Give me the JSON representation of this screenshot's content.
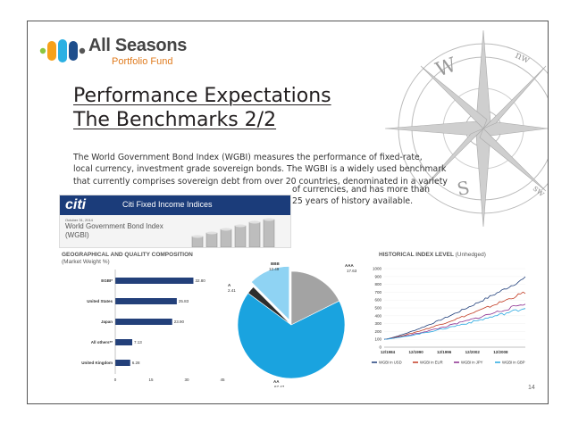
{
  "logo": {
    "name": "All Seasons",
    "subtitle": "Portfolio Fund"
  },
  "title": {
    "line1": "Performance Expectations",
    "line2": "The Benchmarks 2/2"
  },
  "body": {
    "lines": [
      "The World Government Bond Index (WGBI) measures the performance of fixed-rate,",
      "local currency, investment grade sovereign bonds. The WGBI is a widely used benchmark",
      "that currently comprises sovereign debt from over 20 countries, denominated in a variety"
    ],
    "cont_lines": [
      "of currencies, and has more than",
      "25 years of history available."
    ]
  },
  "citi_card": {
    "logo": "citi",
    "header": "Citi Fixed Income Indices",
    "date": "October 31, 2014",
    "name_line1": "World Government Bond Index",
    "name_line2": "(WGBI)"
  },
  "compass": {
    "n1": "nw",
    "n2": "W",
    "n3": "S",
    "n4": "sw"
  },
  "geo_chart": {
    "title_bold": "GEOGRAPHICAL AND QUALITY COMPOSITION",
    "title_sub": "(Market Weight %)",
    "bar_color": "#23407a",
    "bars": [
      {
        "label": "EGBI*",
        "value": 32.8,
        "text": "32.80"
      },
      {
        "label": "United States",
        "value": 25.83,
        "text": "25.83"
      },
      {
        "label": "Japan",
        "value": 23.9,
        "text": "23.90"
      },
      {
        "label": "All others**",
        "value": 7.13,
        "text": "7.13"
      },
      {
        "label": "United Kingdom",
        "value": 6.28,
        "text": "6.28"
      }
    ],
    "ticks": [
      "0",
      "15",
      "30",
      "45"
    ]
  },
  "pie_chart": {
    "slices": [
      {
        "label": "AAA",
        "value": 17.63,
        "color": "#a3a3a3"
      },
      {
        "label": "AA",
        "value": 67.47,
        "color": "#1aa3df"
      },
      {
        "label": "A",
        "value": 2.41,
        "color": "#2d2d2d"
      },
      {
        "label": "BBB",
        "value": 12.49,
        "color": "#8fd3f3"
      }
    ],
    "label_texts": {
      "aaa_name": "AAA",
      "aaa_val": "17.63",
      "aa_name": "AA",
      "aa_val": "67.47",
      "a_name": "A",
      "a_val": "2.41",
      "bbb_name": "BBB",
      "bbb_val": "12.49"
    }
  },
  "hist_chart": {
    "title_bold": "HISTORICAL INDEX LEVEL",
    "title_sub": "(Unhedged)",
    "y_ticks": [
      "1000",
      "900",
      "800",
      "700",
      "600",
      "500",
      "400",
      "300",
      "200",
      "100",
      "0"
    ],
    "x_ticks": [
      "12/1984",
      "12/1990",
      "12/1996",
      "12/2002",
      "12/2008"
    ],
    "legend": [
      {
        "label": "WGBI in USD",
        "color": "#1f3e7a"
      },
      {
        "label": "WGBI in EUR",
        "color": "#c23b22"
      },
      {
        "label": "WGBI in JPY",
        "color": "#8b2e8f"
      },
      {
        "label": "WGBI in GBP",
        "color": "#29a8e0"
      }
    ]
  },
  "page_number": "14"
}
